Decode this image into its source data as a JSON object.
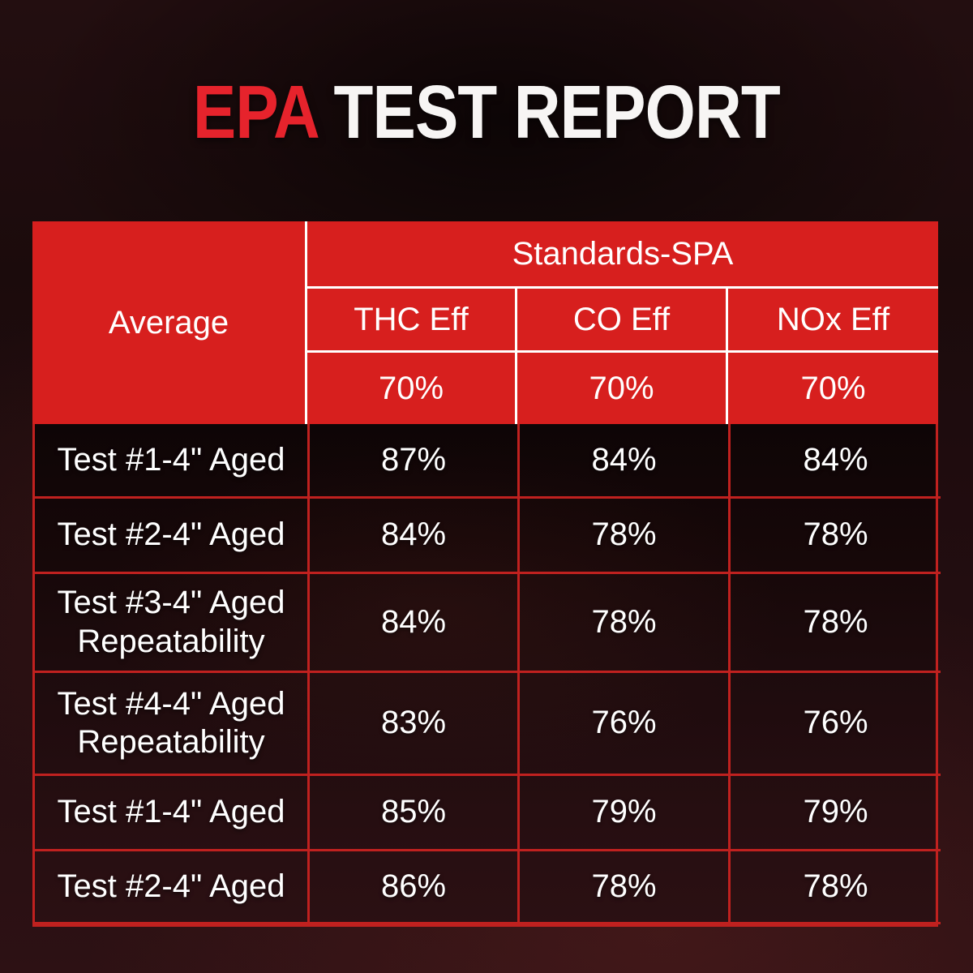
{
  "title": {
    "highlight": "EPA",
    "rest": "TEST REPORT"
  },
  "colors": {
    "header_red": "#d71f1e",
    "title_red": "#e6232c",
    "grid_red": "#c0211f",
    "text_white": "#ffffff",
    "background_dark": "#200d0f"
  },
  "chart_data": {
    "type": "table",
    "title": "EPA TEST REPORT",
    "corner_header": "Average",
    "group_header": "Standards-SPA",
    "columns": [
      "THC Eff",
      "CO Eff",
      "NOx Eff"
    ],
    "standards_row": [
      "70%",
      "70%",
      "70%"
    ],
    "rows": [
      {
        "label": "Test #1-4\" Aged",
        "values": [
          "87%",
          "84%",
          "84%"
        ]
      },
      {
        "label": "Test #2-4\" Aged",
        "values": [
          "84%",
          "78%",
          "78%"
        ]
      },
      {
        "label": "Test #3-4\" Aged Repeatability",
        "values": [
          "84%",
          "78%",
          "78%"
        ]
      },
      {
        "label": "Test #4-4\" Aged Repeatability",
        "values": [
          "83%",
          "76%",
          "76%"
        ]
      },
      {
        "label": "Test #1-4\" Aged",
        "values": [
          "85%",
          "79%",
          "79%"
        ]
      },
      {
        "label": "Test #2-4\" Aged",
        "values": [
          "86%",
          "78%",
          "78%"
        ]
      }
    ]
  }
}
